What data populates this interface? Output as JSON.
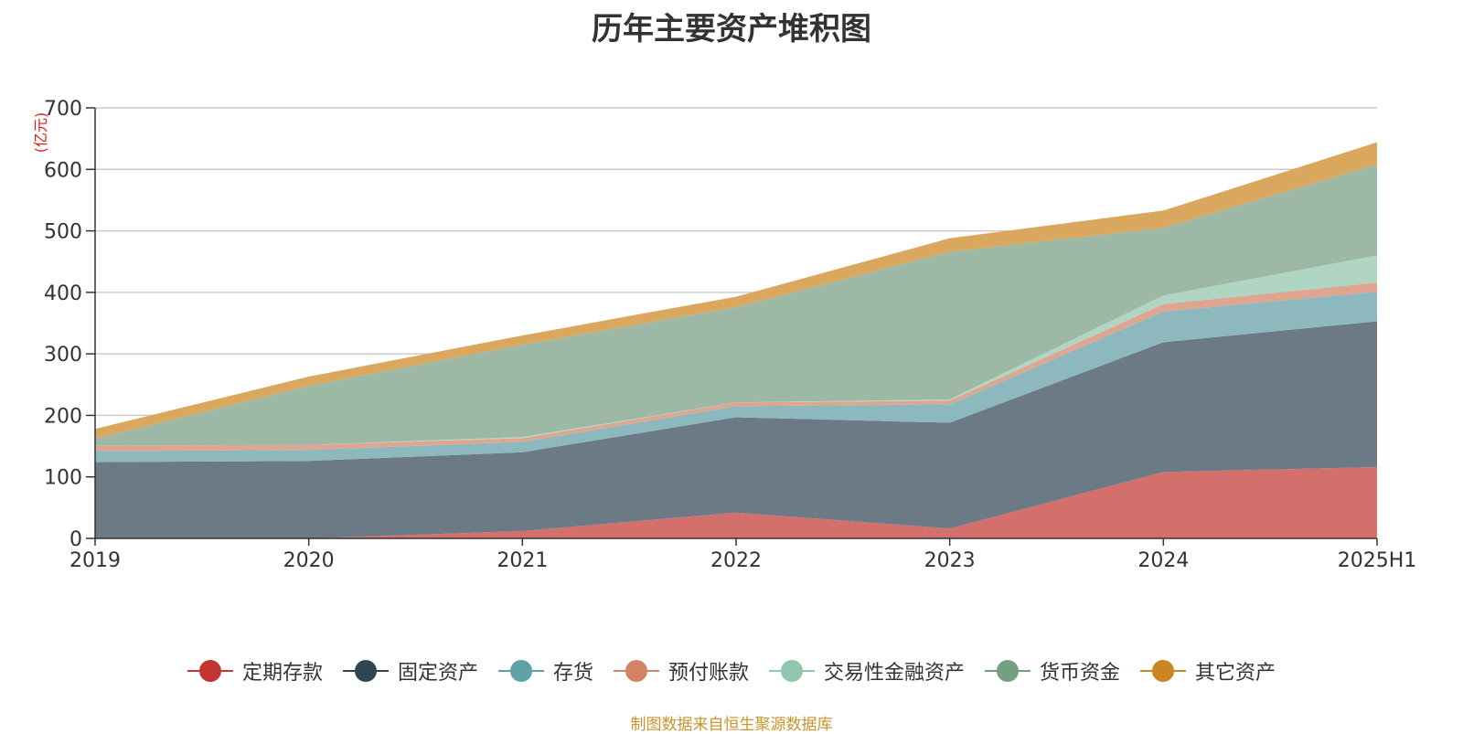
{
  "chart_data": {
    "type": "area",
    "title": "历年主要资产堆积图",
    "unit_label": "(亿元)",
    "source_note": "制图数据来自恒生聚源数据库",
    "categories": [
      "2019",
      "2020",
      "2021",
      "2022",
      "2023",
      "2024",
      "2025H1"
    ],
    "ylim": [
      0,
      700
    ],
    "yticks": [
      0,
      100,
      200,
      300,
      400,
      500,
      600,
      700
    ],
    "grid": true,
    "legend_position": "bottom",
    "stacked": true,
    "series": [
      {
        "name": "定期存款",
        "color": "#c23531",
        "fill": "#d4706b",
        "values": [
          0,
          0,
          12,
          42,
          16,
          108,
          116
        ]
      },
      {
        "name": "固定资产",
        "color": "#2f4554",
        "fill": "#6c7a85",
        "values": [
          124,
          126,
          128,
          155,
          172,
          211,
          237
        ]
      },
      {
        "name": "存货",
        "color": "#61a0a8",
        "fill": "#8db9be",
        "values": [
          18,
          18,
          17,
          18,
          30,
          50,
          48
        ]
      },
      {
        "name": "预付账款",
        "color": "#d48265",
        "fill": "#e0a590",
        "values": [
          9,
          8,
          6,
          6,
          6,
          12,
          15
        ]
      },
      {
        "name": "交易性金融资产",
        "color": "#91c7ae",
        "fill": "#b0d6c3",
        "values": [
          0,
          0,
          2,
          0,
          2,
          14,
          44
        ]
      },
      {
        "name": "货币资金",
        "color": "#749f83",
        "fill": "#9db8a5",
        "values": [
          11,
          96,
          150,
          155,
          240,
          110,
          148
        ]
      },
      {
        "name": "其它资产",
        "color": "#ca8622",
        "fill": "#d9a85e",
        "values": [
          16,
          15,
          15,
          17,
          22,
          28,
          36
        ]
      }
    ]
  }
}
